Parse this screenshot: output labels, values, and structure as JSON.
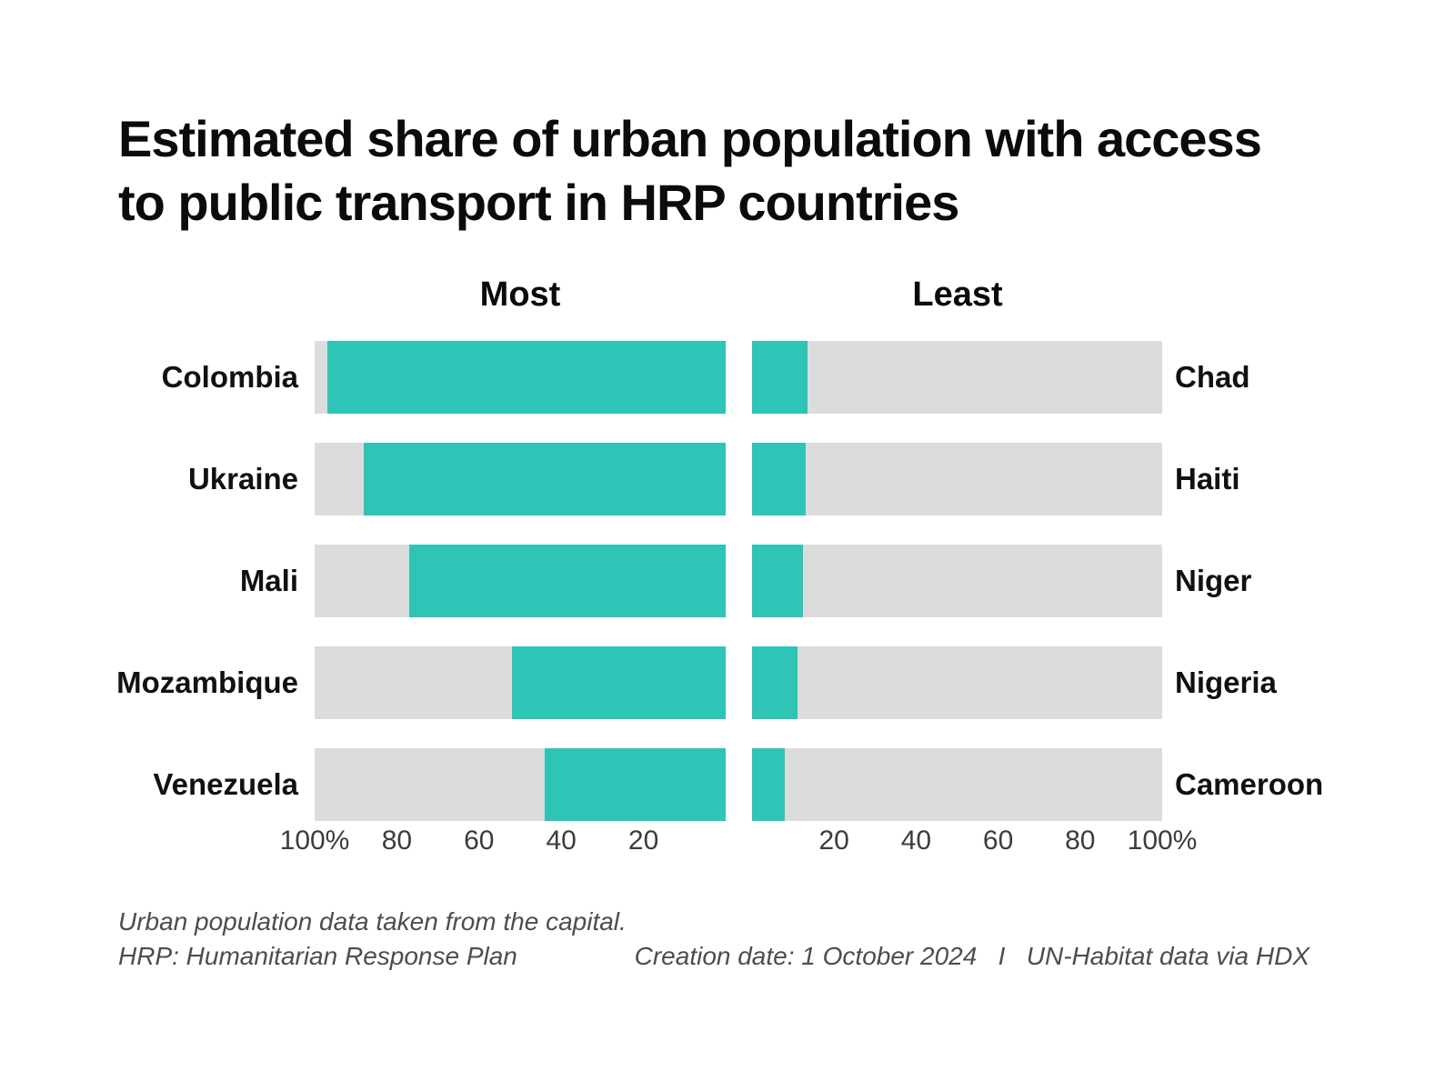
{
  "title": {
    "line1": "Estimated share of urban population with access",
    "line2": "to public transport in HRP countries"
  },
  "panel_headers": {
    "most": "Most",
    "least": "Least"
  },
  "chart_data": {
    "type": "bar",
    "subtype": "mirrored-horizontal-percentage-bars",
    "unit": "percent",
    "xlim": [
      0,
      100
    ],
    "grid": false,
    "legend": "none",
    "axis_ticks": [
      {
        "value": 20,
        "label": "20"
      },
      {
        "value": 40,
        "label": "40"
      },
      {
        "value": 60,
        "label": "60"
      },
      {
        "value": 80,
        "label": "80"
      },
      {
        "value": 100,
        "label": "100%"
      }
    ],
    "panels": [
      {
        "name": "Most",
        "label_side": "left",
        "bar_direction": "right-to-left",
        "axis_order": "100-at-outer-edge, 0-at-center",
        "categories": [
          "Colombia",
          "Ukraine",
          "Mali",
          "Mozambique",
          "Venezuela"
        ],
        "values": [
          97,
          88,
          77,
          52,
          44
        ]
      },
      {
        "name": "Least",
        "label_side": "right",
        "bar_direction": "left-to-right",
        "axis_order": "0-at-center, 100-at-outer-edge",
        "categories": [
          "Chad",
          "Haiti",
          "Niger",
          "Nigeria",
          "Cameroon"
        ],
        "values": [
          13.5,
          13,
          12.5,
          11,
          8
        ]
      }
    ]
  },
  "footer": {
    "note_line1": "Urban population data taken from the capital.",
    "note_line2": "HRP: Humanitarian Response Plan",
    "credit": "Creation date: 1 October 2024   I   UN-Habitat data via HDX"
  },
  "colors": {
    "bar_fill": "#2ec4b6",
    "bar_track": "#dcdcdc",
    "title_text": "#0b0b0b",
    "axis_text": "#3c3c3c",
    "footer_text": "#4d4d4d"
  }
}
